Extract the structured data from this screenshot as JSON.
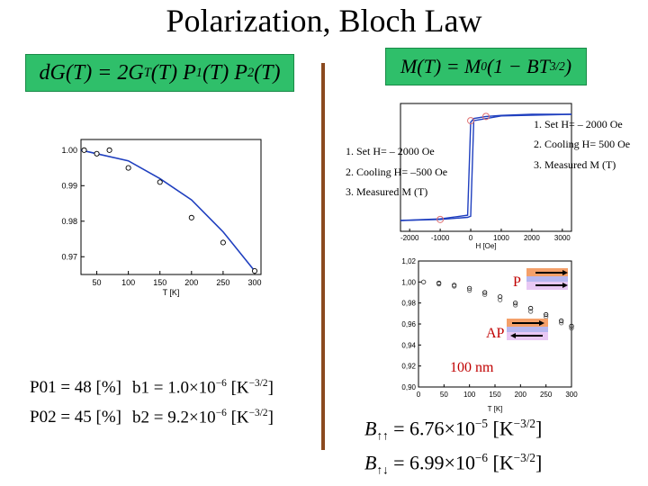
{
  "slide": {
    "title": "Polarization, Bloch Law",
    "eq_left": "dG(T) = 2G",
    "eq_left_rest": "(T) P",
    "eq_left_sub_t": "T",
    "eq_left_sub_1": "1",
    "eq_left_mid": "(T) P",
    "eq_left_sub_2": "2",
    "eq_left_end": "(T)",
    "eq_right": "M(T) = M",
    "eq_right_sub": "0",
    "eq_right_rest": "(1 − BT",
    "eq_right_sup": "3/2",
    "eq_right_end": ")"
  },
  "hysteresis_labels": {
    "right": [
      "1. Set H= – 2000 Oe",
      "2. Cooling  H= 500 Oe",
      "3. Measured M (T)"
    ],
    "left": [
      "1. Set H= – 2000 Oe",
      "2. Cooling  H= –500 Oe",
      "3. Measured M (T)"
    ]
  },
  "params": {
    "p01": "P01 = 48 [%]",
    "b1": "b1 = 1.0×10",
    "b1_exp": "−6",
    "b1_unit": "[K",
    "b1_unit_exp": "−3/2",
    "b1_close": "]",
    "p02": "P02 = 45 [%]",
    "b2": "b2 = 9.2×10",
    "b2_exp": "−6",
    "b2_unit": "[K",
    "b2_unit_exp": "−3/2",
    "b2_close": "]"
  },
  "bloch_b": {
    "b_parallel": "B",
    "b_parallel_sub": "↑↑",
    "b_parallel_val": "= 6.76×10",
    "b_parallel_exp": "−5",
    "b_parallel_unit": "[K",
    "b_parallel_unit_exp": "−3/2",
    "b_parallel_close": "]",
    "b_anti": "B",
    "b_anti_sub": "↑↓",
    "b_anti_val": "= 6.99×10",
    "b_anti_exp": "−6",
    "b_anti_unit": "[K",
    "b_anti_unit_exp": "−3/2",
    "b_anti_close": "]"
  },
  "annotations": {
    "p": "P",
    "ap": "AP",
    "nm": "100 nm"
  },
  "colors": {
    "eq_box": "#2fbf6a",
    "divider": "#8b4a1f",
    "curve": "#1f3fbf",
    "red_label": "#c00000"
  },
  "chart_data": [
    {
      "type": "scatter",
      "title": "",
      "xlabel": "T [K]",
      "ylabel": "",
      "xlim": [
        25,
        310
      ],
      "ylim": [
        0.965,
        1.003
      ],
      "x_ticks": [
        "50",
        "100",
        "150",
        "200",
        "250",
        "300"
      ],
      "y_ticks": [
        "1.00",
        "0.99",
        "0.98",
        "0.97"
      ],
      "points_x": [
        30,
        50,
        70,
        100,
        150,
        200,
        250,
        300
      ],
      "points_y": [
        1.0,
        0.999,
        1.0,
        0.995,
        0.991,
        0.981,
        0.974,
        0.966
      ],
      "fit_x": [
        25,
        50,
        100,
        150,
        200,
        250,
        300
      ],
      "fit_y": [
        1.0,
        0.999,
        0.997,
        0.992,
        0.986,
        0.977,
        0.966
      ]
    },
    {
      "type": "line",
      "title": "",
      "xlabel": "H [Oe]",
      "ylabel": "",
      "xlim": [
        -2300,
        3300
      ],
      "x_ticks": [
        "-2000",
        "-1000",
        "0",
        "1000",
        "2000",
        "3000"
      ],
      "upper_x": [
        -2300,
        -1000,
        -100,
        0,
        100,
        500,
        1000,
        2000,
        3300
      ],
      "upper_y": [
        -1.0,
        -0.97,
        -0.9,
        0.85,
        0.92,
        0.96,
        0.98,
        1.0,
        1.0
      ],
      "lower_x": [
        -2300,
        -1000,
        -100,
        0,
        100,
        1000,
        3300
      ],
      "lower_y": [
        -1.0,
        -0.98,
        -0.94,
        -0.92,
        0.88,
        0.97,
        1.0
      ],
      "marker_x": [
        -1000,
        0,
        500
      ],
      "marker_y": [
        -0.98,
        0.88,
        0.96
      ]
    },
    {
      "type": "scatter",
      "title": "",
      "xlabel": "T [K]",
      "ylabel": "",
      "xlim": [
        0,
        300
      ],
      "ylim": [
        0.9,
        1.02
      ],
      "x_ticks": [
        "0",
        "50",
        "100",
        "150",
        "200",
        "250",
        "300"
      ],
      "y_ticks": [
        "1,02",
        "1,00",
        "0,98",
        "0,96",
        "0,94",
        "0,92",
        "0,90"
      ],
      "series": [
        {
          "name": "",
          "x": [
            10,
            40,
            70,
            100,
            130,
            160,
            190,
            220,
            250,
            280,
            300
          ],
          "y": [
            1.0,
            0.999,
            0.997,
            0.994,
            0.99,
            0.986,
            0.98,
            0.975,
            0.969,
            0.963,
            0.958
          ]
        },
        {
          "name": "",
          "x": [
            10,
            40,
            70,
            100,
            130,
            160,
            190,
            220,
            250,
            280,
            300
          ],
          "y": [
            1.0,
            0.998,
            0.996,
            0.992,
            0.988,
            0.983,
            0.978,
            0.972,
            0.967,
            0.961,
            0.956
          ]
        }
      ]
    }
  ]
}
